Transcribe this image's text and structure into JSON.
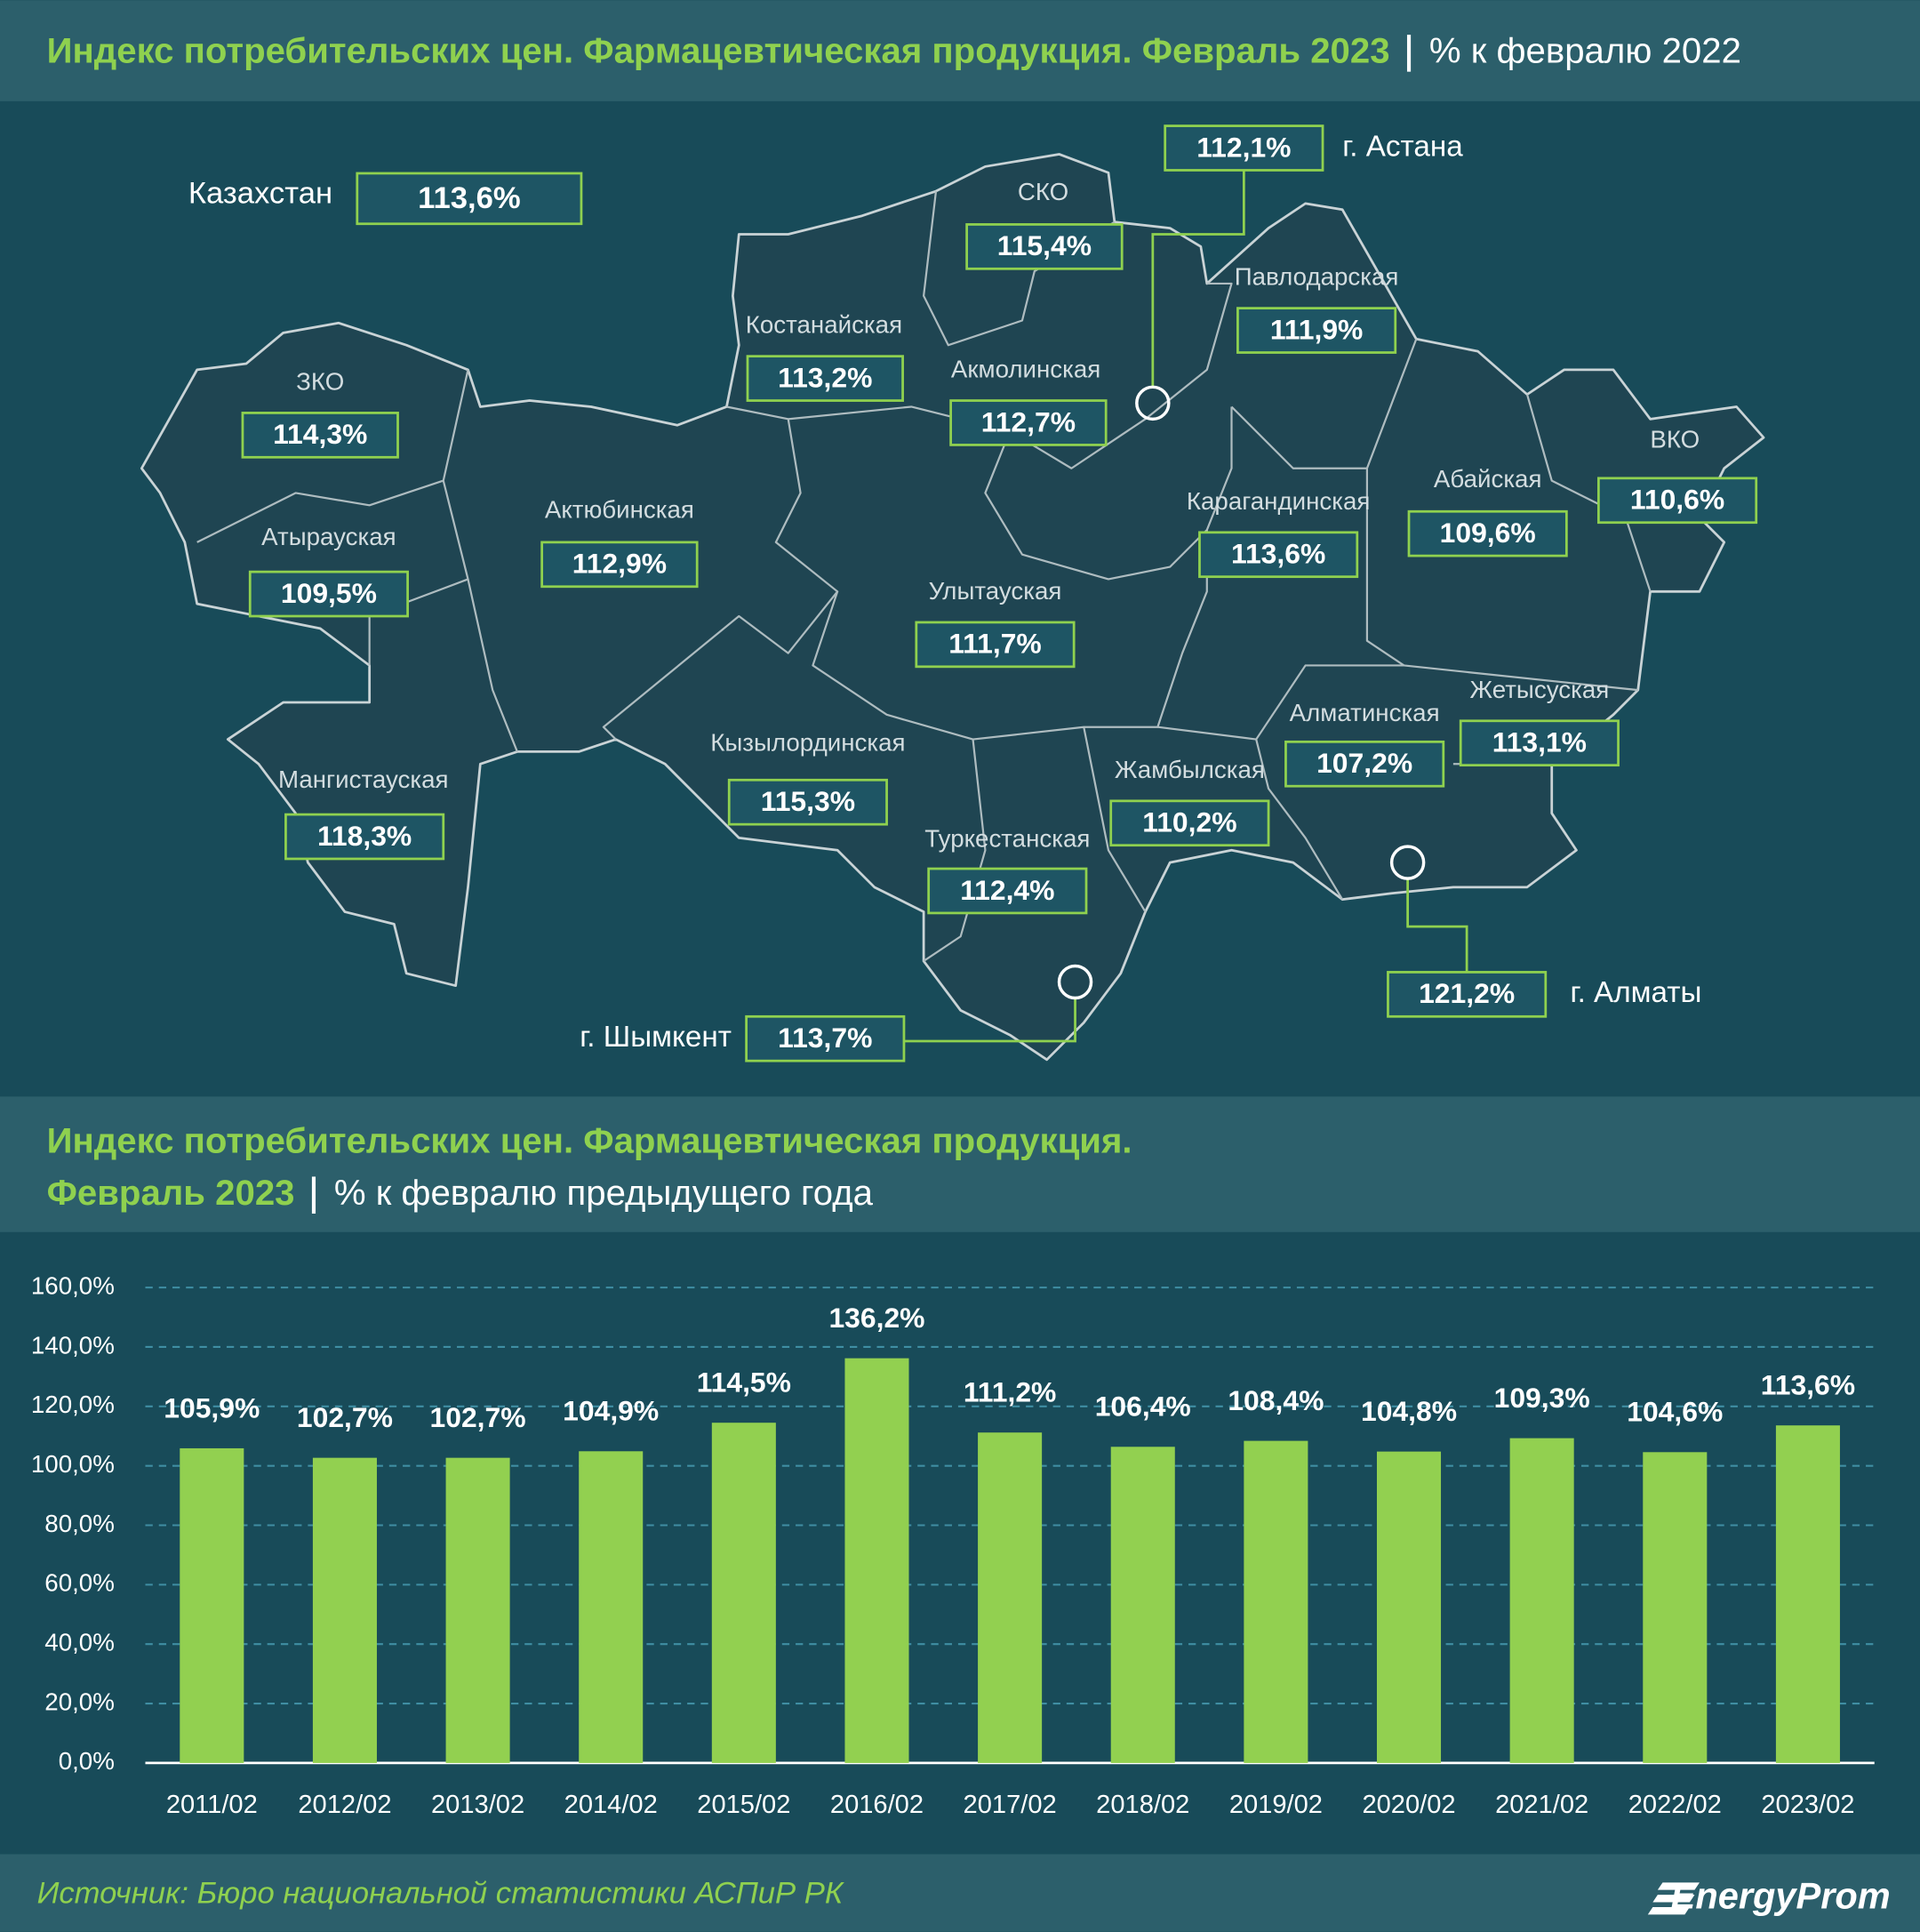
{
  "header": {
    "title": "Индекс потребительских цен. Фармацевтическая продукция. Февраль 2023",
    "subtitle": "% к февралю 2022"
  },
  "map": {
    "regions": [
      {
        "name": "Казахстан",
        "value": "113,6%"
      },
      {
        "name": "г. Астана",
        "value": "112,1%"
      },
      {
        "name": "СКО",
        "value": "115,4%"
      },
      {
        "name": "Павлодарская",
        "value": "111,9%"
      },
      {
        "name": "Костанайская",
        "value": "113,2%"
      },
      {
        "name": "Акмолинская",
        "value": "112,7%"
      },
      {
        "name": "ЗКО",
        "value": "114,3%"
      },
      {
        "name": "Актюбинская",
        "value": "112,9%"
      },
      {
        "name": "Атырауская",
        "value": "109,5%"
      },
      {
        "name": "Карагандинская",
        "value": "113,6%"
      },
      {
        "name": "Абайская",
        "value": "109,6%"
      },
      {
        "name": "ВКО",
        "value": "110,6%"
      },
      {
        "name": "Улытауская",
        "value": "111,7%"
      },
      {
        "name": "Жетысуская",
        "value": "113,1%"
      },
      {
        "name": "Алматинская",
        "value": "107,2%"
      },
      {
        "name": "Кызылординская",
        "value": "115,3%"
      },
      {
        "name": "Жамбылская",
        "value": "110,2%"
      },
      {
        "name": "Мангистауская",
        "value": "118,3%"
      },
      {
        "name": "Туркестанская",
        "value": "112,4%"
      },
      {
        "name": "г. Алматы",
        "value": "121,2%"
      },
      {
        "name": "г. Шымкент",
        "value": "113,7%"
      }
    ]
  },
  "chart_data": {
    "type": "bar",
    "title": "Индекс потребительских цен. Фармацевтическая продукция.",
    "title_line2": "Февраль 2023",
    "subtitle": "% к февралю предыдущего года",
    "categories": [
      "2011/02",
      "2012/02",
      "2013/02",
      "2014/02",
      "2015/02",
      "2016/02",
      "2017/02",
      "2018/02",
      "2019/02",
      "2020/02",
      "2021/02",
      "2022/02",
      "2023/02"
    ],
    "values": [
      105.9,
      102.7,
      102.7,
      104.9,
      114.5,
      136.2,
      111.2,
      106.4,
      108.4,
      104.8,
      109.3,
      104.6,
      113.6
    ],
    "value_labels": [
      "105,9%",
      "102,7%",
      "102,7%",
      "104,9%",
      "114,5%",
      "136,2%",
      "111,2%",
      "106,4%",
      "108,4%",
      "104,8%",
      "109,3%",
      "104,6%",
      "113,6%"
    ],
    "color": "#92d050",
    "ylim": [
      0,
      160
    ],
    "yticks": [
      {
        "value": 0,
        "label": "0,0%"
      },
      {
        "value": 20,
        "label": "20,0%"
      },
      {
        "value": 40,
        "label": "40,0%"
      },
      {
        "value": 60,
        "label": "60,0%"
      },
      {
        "value": 80,
        "label": "80,0%"
      },
      {
        "value": 100,
        "label": "100,0%"
      },
      {
        "value": 120,
        "label": "120,0%"
      },
      {
        "value": 140,
        "label": "140,0%"
      },
      {
        "value": 160,
        "label": "160,0%"
      }
    ],
    "grid": true
  },
  "footer": {
    "source": "Источник: Бюро национальной статистики АСПиР РК",
    "logo": "EnergyProm"
  }
}
